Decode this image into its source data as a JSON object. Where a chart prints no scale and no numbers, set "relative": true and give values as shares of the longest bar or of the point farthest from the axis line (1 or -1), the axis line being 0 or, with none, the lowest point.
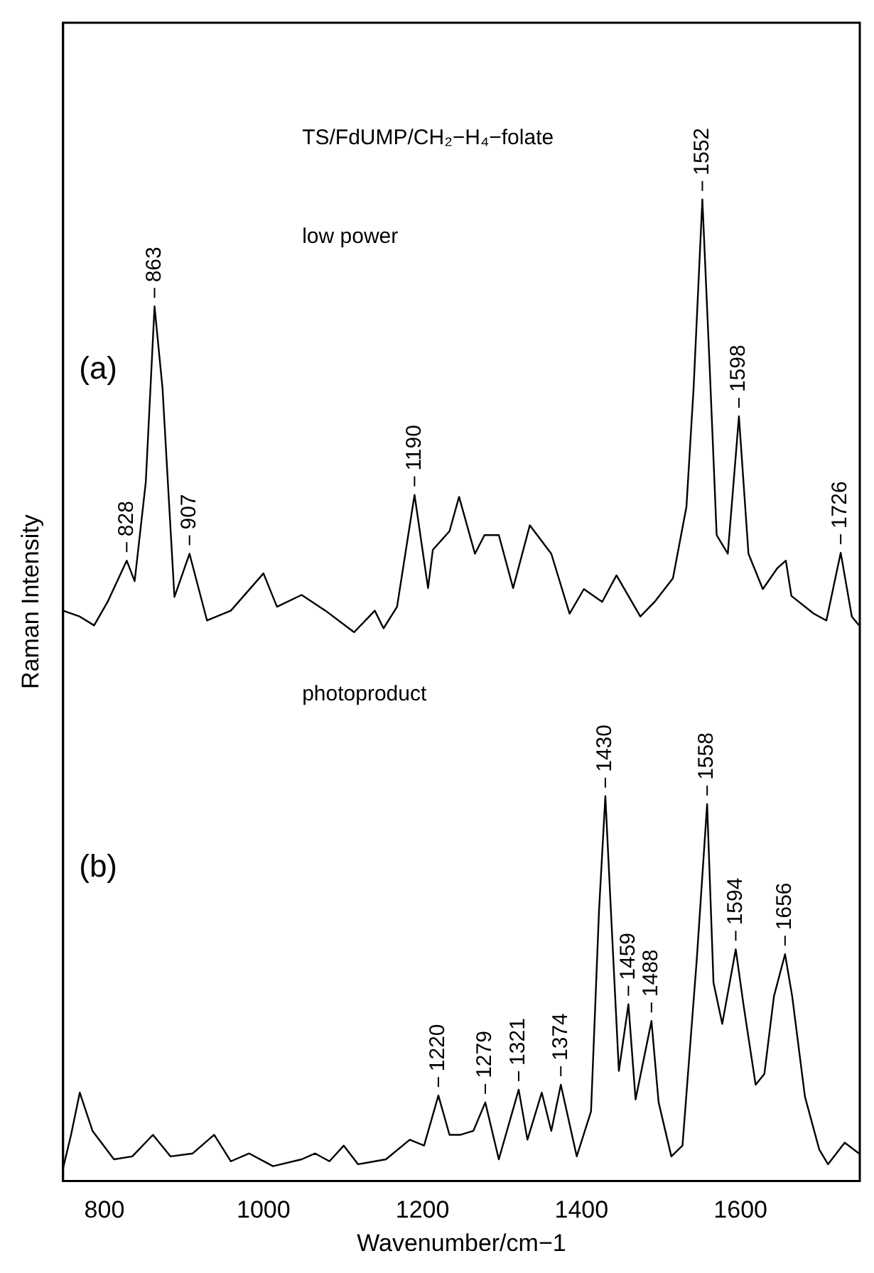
{
  "chart_data": {
    "type": "line",
    "relative": true,
    "xlabel": "Wavenumber/cm−1",
    "ylabel": "Raman Intensity",
    "xlim": [
      748,
      1750
    ],
    "xticks": [
      800,
      1000,
      1200,
      1400,
      1600
    ],
    "grid": false,
    "legend": false,
    "marker": "none",
    "line_style": "solid",
    "series": [
      {
        "color": "#000000",
        "x": [
          748,
          769,
          787,
          804,
          828,
          838,
          852,
          863,
          873,
          888,
          907,
          929,
          959,
          1000,
          1017,
          1048,
          1078,
          1114,
          1140,
          1151,
          1168,
          1190,
          1207,
          1213,
          1234,
          1246,
          1266,
          1278,
          1296,
          1314,
          1335,
          1362,
          1385,
          1403,
          1426,
          1444,
          1474,
          1492,
          1515,
          1532,
          1541,
          1552,
          1561,
          1570,
          1584,
          1598,
          1610,
          1628,
          1646,
          1657,
          1664,
          1692,
          1708,
          1726,
          1740,
          1749
        ],
        "values": [
          0.581,
          0.575,
          0.566,
          0.59,
          0.632,
          0.611,
          0.712,
          0.891,
          0.808,
          0.595,
          0.639,
          0.571,
          0.581,
          0.619,
          0.585,
          0.597,
          0.581,
          0.559,
          0.581,
          0.563,
          0.585,
          0.699,
          0.604,
          0.643,
          0.662,
          0.697,
          0.639,
          0.658,
          0.658,
          0.604,
          0.668,
          0.639,
          0.578,
          0.603,
          0.59,
          0.617,
          0.575,
          0.59,
          0.614,
          0.687,
          0.808,
          1.0,
          0.833,
          0.658,
          0.639,
          0.779,
          0.639,
          0.603,
          0.624,
          0.632,
          0.596,
          0.578,
          0.571,
          0.64,
          0.575,
          0.566
        ]
      },
      {
        "color": "#000000",
        "x": [
          748,
          758,
          769,
          785,
          812,
          835,
          861,
          883,
          911,
          938,
          959,
          982,
          1012,
          1048,
          1065,
          1083,
          1101,
          1119,
          1154,
          1184,
          1202,
          1220,
          1234,
          1248,
          1264,
          1279,
          1296,
          1321,
          1332,
          1350,
          1362,
          1374,
          1394,
          1412,
          1422,
          1430,
          1437,
          1447,
          1459,
          1468,
          1488,
          1497,
          1513,
          1527,
          1545,
          1558,
          1566,
          1577,
          1594,
          1604,
          1619,
          1630,
          1642,
          1656,
          1665,
          1681,
          1699,
          1710,
          1731,
          1749
        ],
        "values": [
          0.013,
          0.047,
          0.09,
          0.051,
          0.022,
          0.025,
          0.047,
          0.025,
          0.028,
          0.047,
          0.02,
          0.028,
          0.015,
          0.022,
          0.028,
          0.02,
          0.036,
          0.017,
          0.022,
          0.042,
          0.036,
          0.087,
          0.047,
          0.047,
          0.051,
          0.08,
          0.022,
          0.093,
          0.042,
          0.09,
          0.051,
          0.098,
          0.025,
          0.071,
          0.275,
          0.392,
          0.275,
          0.112,
          0.18,
          0.083,
          0.163,
          0.08,
          0.025,
          0.036,
          0.226,
          0.384,
          0.202,
          0.16,
          0.236,
          0.178,
          0.098,
          0.109,
          0.188,
          0.231,
          0.188,
          0.086,
          0.032,
          0.017,
          0.039,
          0.028
        ]
      }
    ],
    "annotations": [
      "TS/FdUMP/CH₂−H₄−folate",
      "low power",
      "(a)",
      "photoproduct",
      "(b)",
      {
        "text": "828",
        "x": 828,
        "y": 0.632
      },
      {
        "text": "863",
        "x": 863,
        "y": 0.891
      },
      {
        "text": "907",
        "x": 907,
        "y": 0.639
      },
      {
        "text": "1190",
        "x": 1190,
        "y": 0.699
      },
      {
        "text": "1552",
        "x": 1552,
        "y": 1.0
      },
      {
        "text": "1598",
        "x": 1598,
        "y": 0.779
      },
      {
        "text": "1726",
        "x": 1726,
        "y": 0.64
      },
      {
        "text": "1220",
        "x": 1220,
        "y": 0.087
      },
      {
        "text": "1279",
        "x": 1279,
        "y": 0.08
      },
      {
        "text": "1321",
        "x": 1321,
        "y": 0.093
      },
      {
        "text": "1374",
        "x": 1374,
        "y": 0.098
      },
      {
        "text": "1430",
        "x": 1430,
        "y": 0.392
      },
      {
        "text": "1459",
        "x": 1459,
        "y": 0.18
      },
      {
        "text": "1488",
        "x": 1488,
        "y": 0.163
      },
      {
        "text": "1558",
        "x": 1558,
        "y": 0.384
      },
      {
        "text": "1594",
        "x": 1594,
        "y": 0.236
      },
      {
        "text": "1656",
        "x": 1656,
        "y": 0.231
      }
    ]
  }
}
